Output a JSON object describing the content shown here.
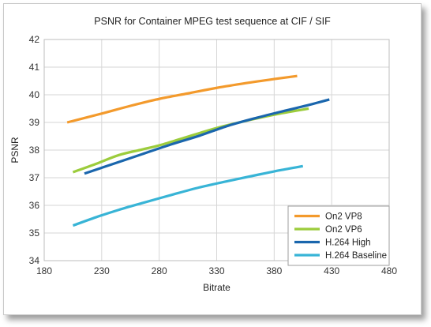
{
  "chart_data": {
    "type": "line",
    "title": "PSNR for Container MPEG test sequence at CIF / SIF",
    "xlabel": "Bitrate",
    "ylabel": "PSNR",
    "xlim": [
      180,
      480
    ],
    "ylim": [
      34,
      42
    ],
    "xticks": [
      180,
      230,
      280,
      330,
      380,
      430,
      480
    ],
    "yticks": [
      34,
      35,
      36,
      37,
      38,
      39,
      40,
      41,
      42
    ],
    "grid": true,
    "legend_position": "bottom-right",
    "series": [
      {
        "name": "On2 VP8",
        "color": "#f39a2c",
        "x": [
          200,
          230,
          255,
          280,
          305,
          330,
          355,
          380,
          400
        ],
        "y": [
          39.0,
          39.32,
          39.6,
          39.85,
          40.05,
          40.25,
          40.42,
          40.57,
          40.68
        ]
      },
      {
        "name": "On2 VP6",
        "color": "#9ccc3c",
        "x": [
          205,
          225,
          245,
          265,
          280,
          300,
          330,
          360,
          385,
          410
        ],
        "y": [
          37.2,
          37.5,
          37.82,
          38.02,
          38.17,
          38.42,
          38.8,
          39.1,
          39.32,
          39.5
        ]
      },
      {
        "name": "H.264 High",
        "color": "#1a66ad",
        "x": [
          215,
          240,
          265,
          290,
          315,
          340,
          365,
          390,
          410,
          428
        ],
        "y": [
          37.15,
          37.5,
          37.85,
          38.2,
          38.52,
          38.88,
          39.17,
          39.43,
          39.63,
          39.83
        ]
      },
      {
        "name": "H.264 Baseline",
        "color": "#38b4d6",
        "x": [
          205,
          225,
          245,
          265,
          290,
          315,
          340,
          365,
          385,
          405
        ],
        "y": [
          35.27,
          35.57,
          35.84,
          36.08,
          36.37,
          36.65,
          36.88,
          37.1,
          37.27,
          37.42
        ]
      }
    ]
  }
}
